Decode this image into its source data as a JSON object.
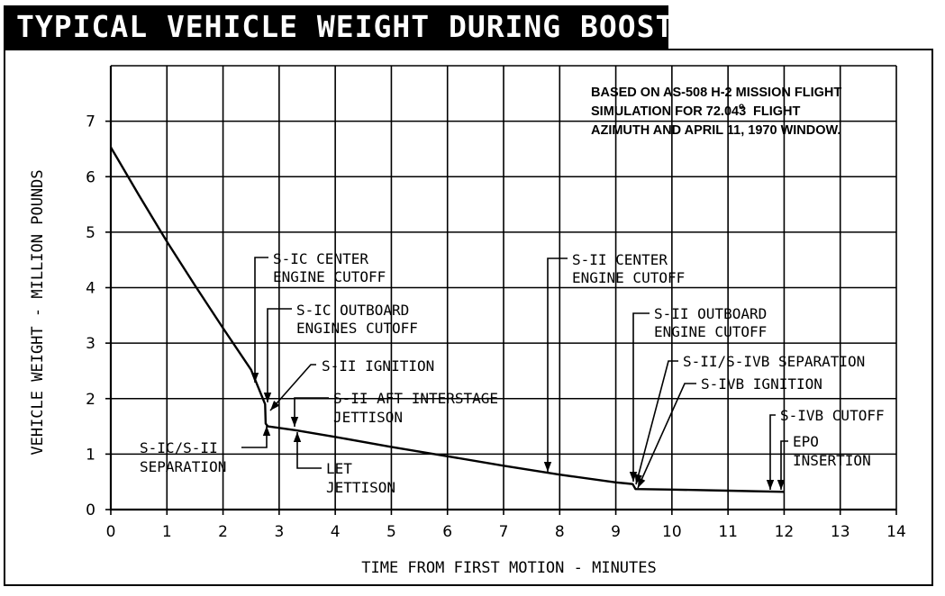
{
  "chart_data": {
    "type": "line",
    "title": "TYPICAL VEHICLE WEIGHT DURING BOOST TO EPO",
    "xlabel": "TIME FROM FIRST MOTION - MINUTES",
    "ylabel": "VEHICLE WEIGHT - MILLION POUNDS",
    "xlim": [
      0,
      14
    ],
    "ylim": [
      0,
      8
    ],
    "x_ticks": [
      "0",
      "1",
      "2",
      "3",
      "4",
      "5",
      "6",
      "7",
      "8",
      "9",
      "10",
      "11",
      "12",
      "13",
      "14"
    ],
    "y_ticks": [
      "0",
      "1",
      "2",
      "3",
      "4",
      "5",
      "6",
      "7"
    ],
    "grid": true,
    "note_lines": [
      "BASED ON AS-508 H-2 MISSION FLIGHT",
      "SIMULATION FOR 72.043",
      "o",
      "FLIGHT",
      "AZIMUTH AND APRIL 11, 1970 WINDOW."
    ],
    "series": [
      {
        "name": "Vehicle weight",
        "x": [
          0,
          0.5,
          1.0,
          1.5,
          2.0,
          2.5,
          2.75,
          2.76,
          2.8,
          3.3,
          4,
          5,
          6,
          7,
          8,
          9,
          9.2,
          9.3,
          9.35,
          10,
          11,
          12
        ],
        "y": [
          6.53,
          5.67,
          4.83,
          4.04,
          3.27,
          2.52,
          1.9,
          1.55,
          1.5,
          1.43,
          1.31,
          1.13,
          0.96,
          0.79,
          0.63,
          0.49,
          0.47,
          0.46,
          0.37,
          0.36,
          0.34,
          0.32
        ]
      }
    ],
    "annotations": [
      {
        "lines": [
          "S-IC CENTER",
          "ENGINE CUTOFF"
        ],
        "x": 2.6,
        "y": 1.95
      },
      {
        "lines": [
          "S-IC OUTBOARD",
          "ENGINES CUTOFF"
        ],
        "x": 2.78,
        "y": 1.83
      },
      {
        "lines": [
          "S-II IGNITION"
        ],
        "x": 2.8,
        "y": 1.55
      },
      {
        "lines": [
          "S-II AFT INTERSTAGE",
          "JETTISON"
        ],
        "x": 3.3,
        "y": 1.43
      },
      {
        "lines": [
          "S-IC/S-II",
          "SEPARATION"
        ],
        "x": 2.77,
        "y": 1.52
      },
      {
        "lines": [
          "LET",
          "JETTISON"
        ],
        "x": 3.3,
        "y": 1.43
      },
      {
        "lines": [
          "S-II CENTER",
          "ENGINE CUTOFF"
        ],
        "x": 7.8,
        "y": 0.68
      },
      {
        "lines": [
          "S-II OUTBOARD",
          "ENGINE CUTOFF"
        ],
        "x": 9.3,
        "y": 0.46
      },
      {
        "lines": [
          "S-II/S-IVB SEPARATION"
        ],
        "x": 9.32,
        "y": 0.42
      },
      {
        "lines": [
          "S-IVB IGNITION"
        ],
        "x": 9.35,
        "y": 0.37
      },
      {
        "lines": [
          "S-IVB CUTOFF"
        ],
        "x": 11.8,
        "y": 0.34
      },
      {
        "lines": [
          "EPO",
          "INSERTION"
        ],
        "x": 11.95,
        "y": 0.34
      }
    ]
  }
}
